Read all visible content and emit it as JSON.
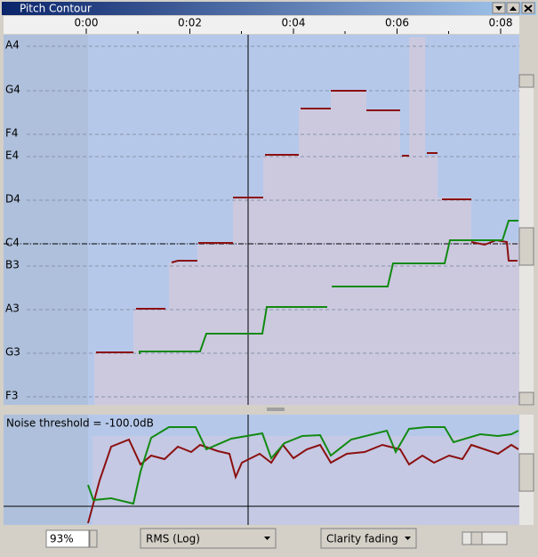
{
  "window": {
    "title": "Pitch Contour"
  },
  "time_ruler": [
    "0:00",
    "0:02",
    "0:04",
    "0:06",
    "0:08"
  ],
  "note_labels": [
    "A4",
    "G4",
    "F4",
    "E4",
    "D4",
    "C4",
    "B3",
    "A3",
    "G3",
    "F3"
  ],
  "lower_panel": {
    "label": "Noise threshold = -100.0dB"
  },
  "status_bar": {
    "zoom": "93%",
    "amplitude_mode": "RMS (Log)",
    "display_mode": "Clarity fading"
  }
}
